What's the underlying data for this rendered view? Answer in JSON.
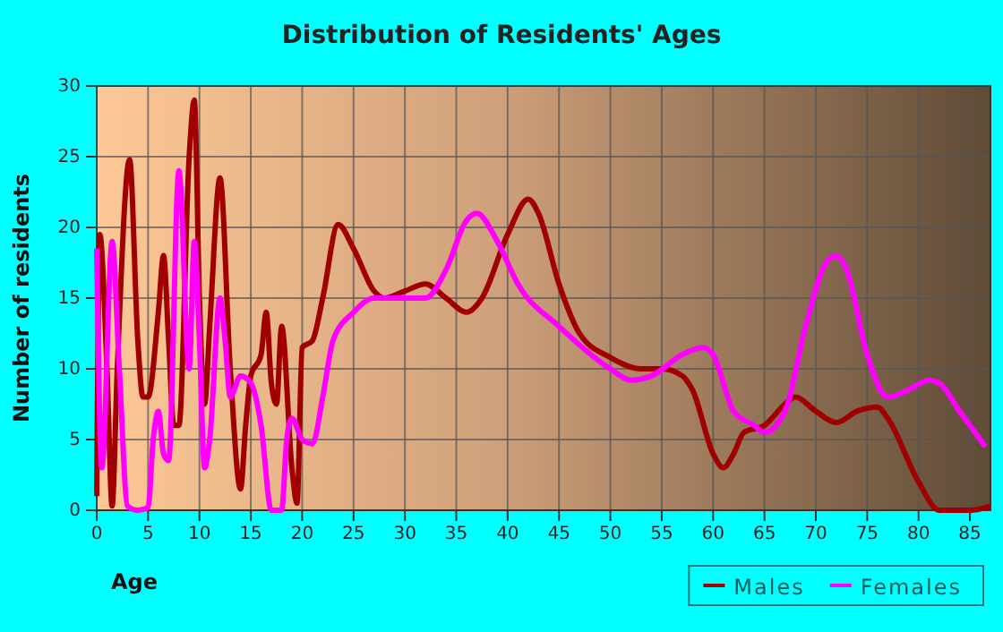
{
  "chart_data": {
    "type": "line",
    "title": "Distribution of Residents' Ages",
    "xlabel": "Age",
    "ylabel": "Number of residents",
    "xlim": [
      0,
      87
    ],
    "xticks": [
      0,
      5,
      10,
      15,
      20,
      25,
      30,
      35,
      40,
      45,
      50,
      55,
      60,
      65,
      70,
      75,
      80,
      85
    ],
    "ylim": [
      0,
      30
    ],
    "yticks": [
      0,
      5,
      10,
      15,
      20,
      25,
      30
    ],
    "grid": true,
    "legend": "bottom right",
    "series": [
      {
        "name": "Males",
        "color": "#a00000",
        "x": [
          0,
          0.3,
          1,
          1.5,
          2,
          3.2,
          4,
          4.5,
          5,
          6,
          6.5,
          7,
          7.5,
          8,
          9,
          9.5,
          10,
          10.5,
          11,
          12,
          13,
          14,
          14.5,
          15,
          16,
          16.5,
          17,
          17.5,
          18,
          19,
          19.5,
          20,
          21,
          22,
          23.5,
          25,
          27,
          28,
          30,
          32,
          34,
          36,
          37.5,
          40,
          42,
          43,
          45,
          47,
          50,
          53,
          55,
          57,
          58,
          60,
          61,
          62,
          63,
          65,
          67,
          68,
          70,
          72,
          74,
          76,
          77,
          80,
          82,
          85,
          87
        ],
        "values": [
          1,
          19.5,
          10,
          0.3,
          10,
          24.8,
          12,
          8,
          8,
          14,
          18,
          12,
          6,
          6,
          25,
          29,
          15,
          7.5,
          13,
          23.5,
          10,
          1.5,
          6,
          9.5,
          11,
          14,
          9,
          7.5,
          13,
          3,
          0.5,
          11.5,
          12,
          15,
          20.2,
          18.5,
          15.5,
          15,
          15.5,
          16,
          15,
          14,
          15,
          19.5,
          22,
          21,
          16,
          12.5,
          10.8,
          10,
          10,
          9.5,
          8.5,
          4,
          3,
          4,
          5.5,
          6,
          7.5,
          8,
          7,
          6.2,
          7,
          7.3,
          6.5,
          2,
          0,
          0,
          0.3
        ]
      },
      {
        "name": "Females",
        "color": "#ff00ff",
        "x": [
          0,
          0.5,
          1.5,
          2.2,
          3,
          4,
          5,
          5.5,
          6,
          6.5,
          7,
          8,
          9,
          9.5,
          10,
          10.5,
          11,
          12,
          12.5,
          13,
          14,
          15,
          16,
          17,
          18,
          18.5,
          19,
          20,
          21,
          22,
          23,
          25,
          27,
          30,
          32,
          34,
          36,
          37,
          39,
          41,
          45,
          50,
          52,
          54,
          57,
          59,
          60,
          62,
          64,
          65,
          67,
          69,
          71,
          72,
          73,
          75,
          77,
          79,
          81,
          82,
          84,
          86.5
        ],
        "values": [
          18.5,
          3,
          19,
          10,
          0.3,
          0,
          0.2,
          5,
          7,
          4,
          3.5,
          24,
          10,
          19,
          12,
          3,
          5,
          15,
          12,
          8,
          9.5,
          9,
          6,
          0,
          0,
          5,
          6.5,
          5,
          4.7,
          8,
          12,
          14,
          15,
          15,
          15,
          17,
          20.5,
          21,
          19,
          16,
          13,
          10,
          9.2,
          9.5,
          11,
          11.5,
          11,
          7,
          6,
          5.5,
          7,
          13,
          17.5,
          18,
          17,
          11,
          8,
          8.5,
          9.2,
          9,
          7,
          4.5
        ]
      }
    ]
  }
}
